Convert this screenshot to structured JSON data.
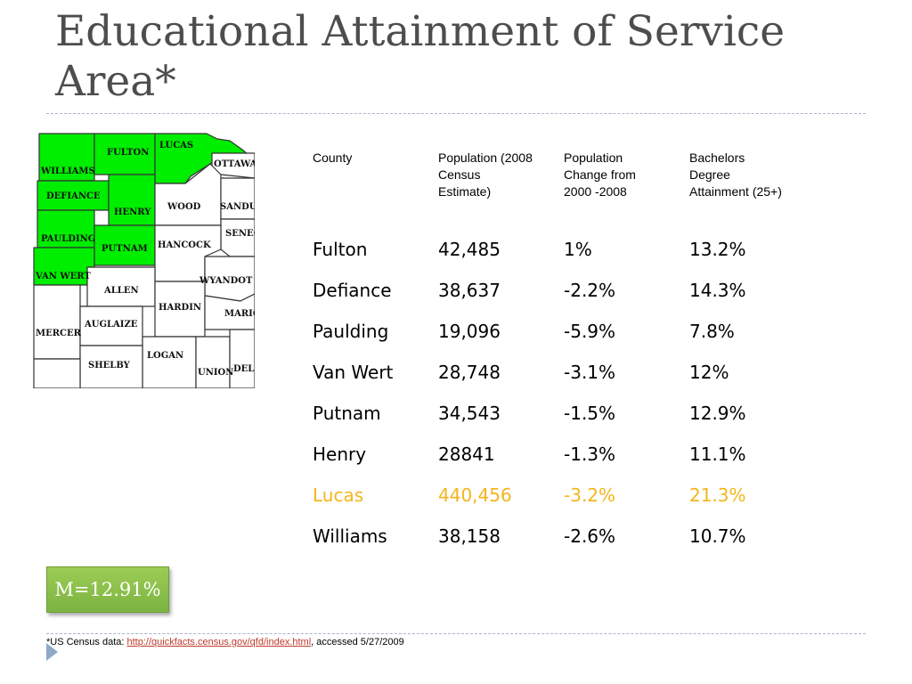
{
  "title": "Educational Attainment of Service Area*",
  "map": {
    "counties": [
      {
        "name": "FULTON",
        "highlighted": true
      },
      {
        "name": "LUCAS",
        "highlighted": true
      },
      {
        "name": "WILLIAMS",
        "highlighted": true
      },
      {
        "name": "DEFIANCE",
        "highlighted": true
      },
      {
        "name": "HENRY",
        "highlighted": true
      },
      {
        "name": "PAULDING",
        "highlighted": true
      },
      {
        "name": "PUTNAM",
        "highlighted": true
      },
      {
        "name": "VAN WERT",
        "highlighted": true
      },
      {
        "name": "OTTAWA",
        "highlighted": false
      },
      {
        "name": "WOOD",
        "highlighted": false
      },
      {
        "name": "SANDUS",
        "highlighted": false
      },
      {
        "name": "SENEC",
        "highlighted": false
      },
      {
        "name": "HANCOCK",
        "highlighted": false
      },
      {
        "name": "WYANDOT",
        "highlighted": false
      },
      {
        "name": "ALLEN",
        "highlighted": false
      },
      {
        "name": "HARDIN",
        "highlighted": false
      },
      {
        "name": "MARIO",
        "highlighted": false
      },
      {
        "name": "MERCER",
        "highlighted": false
      },
      {
        "name": "AUGLAIZE",
        "highlighted": false
      },
      {
        "name": "LOGAN",
        "highlighted": false
      },
      {
        "name": "SHELBY",
        "highlighted": false
      },
      {
        "name": "UNION",
        "highlighted": false
      },
      {
        "name": "DEL",
        "highlighted": false
      }
    ],
    "highlight_color": "#00ee00"
  },
  "table": {
    "headers": [
      [
        "County"
      ],
      [
        "Population (2008",
        "Census",
        "Estimate)"
      ],
      [
        "Population",
        "Change from",
        "2000 -2008"
      ],
      [
        "Bachelors",
        "Degree",
        "Attainment (25+)"
      ]
    ],
    "rows": [
      {
        "cells": [
          "Fulton",
          "42,485",
          "1%",
          "13.2%"
        ]
      },
      {
        "cells": [
          "Defiance",
          "38,637",
          "-2.2%",
          "14.3%"
        ]
      },
      {
        "cells": [
          "Paulding",
          "19,096",
          "-5.9%",
          "7.8%"
        ]
      },
      {
        "cells": [
          "Van Wert",
          "28,748",
          "-3.1%",
          "12%"
        ]
      },
      {
        "cells": [
          "Putnam",
          "34,543",
          "-1.5%",
          "12.9%"
        ]
      },
      {
        "cells": [
          "Henry",
          "28841",
          "-1.3%",
          "11.1%"
        ]
      },
      {
        "cells": [
          "Lucas",
          "440,456",
          "-3.2%",
          "21.3%"
        ],
        "highlight": true
      },
      {
        "cells": [
          "Williams",
          "38,158",
          "-2.6%",
          "10.7%"
        ]
      }
    ],
    "highlight_color": "#f3b51c"
  },
  "badge": {
    "text": "M=12.91%"
  },
  "footnote": {
    "prefix": "*US Census data: ",
    "link": "http://quickfacts.census.gov/qfd/index.html",
    "suffix": ", accessed 5/27/2009"
  }
}
